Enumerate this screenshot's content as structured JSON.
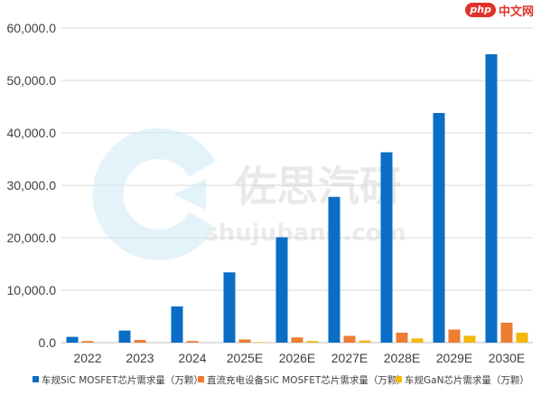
{
  "site_badge": {
    "logo": "php",
    "text": "中文网"
  },
  "watermark": {
    "brand": "佐思汽研",
    "domain": "shujubang.com"
  },
  "colors": {
    "series": [
      "#0a6ec6",
      "#ed7d31",
      "#f3b80a"
    ],
    "grid": "#d9d9d9",
    "axis_text": "#404040",
    "watermark_blue": "#3aa7d8"
  },
  "chart_data": {
    "type": "bar",
    "categories": [
      "2022",
      "2023",
      "2024",
      "2025E",
      "2026E",
      "2027E",
      "2028E",
      "2029E",
      "2030E"
    ],
    "series": [
      {
        "name": "车规SiC MOSFET芯片需求量（万颗）",
        "values": [
          1100,
          2300,
          6900,
          13400,
          20100,
          27800,
          36300,
          43800,
          55000
        ]
      },
      {
        "name": "直流充电设备SiC MOSFET芯片需求量（万颗）",
        "values": [
          300,
          500,
          300,
          600,
          1000,
          1300,
          1900,
          2500,
          3800
        ]
      },
      {
        "name": "车规GaN芯片需求量（万颗）",
        "values": [
          0,
          0,
          0,
          100,
          300,
          400,
          800,
          1300,
          1900
        ]
      }
    ],
    "yticks": [
      "0.0",
      "10,000.0",
      "20,000.0",
      "30,000.0",
      "40,000.0",
      "50,000.0",
      "60,000.0"
    ],
    "ylim": [
      0,
      60000
    ],
    "grid": true,
    "legend_position": "bottom"
  }
}
